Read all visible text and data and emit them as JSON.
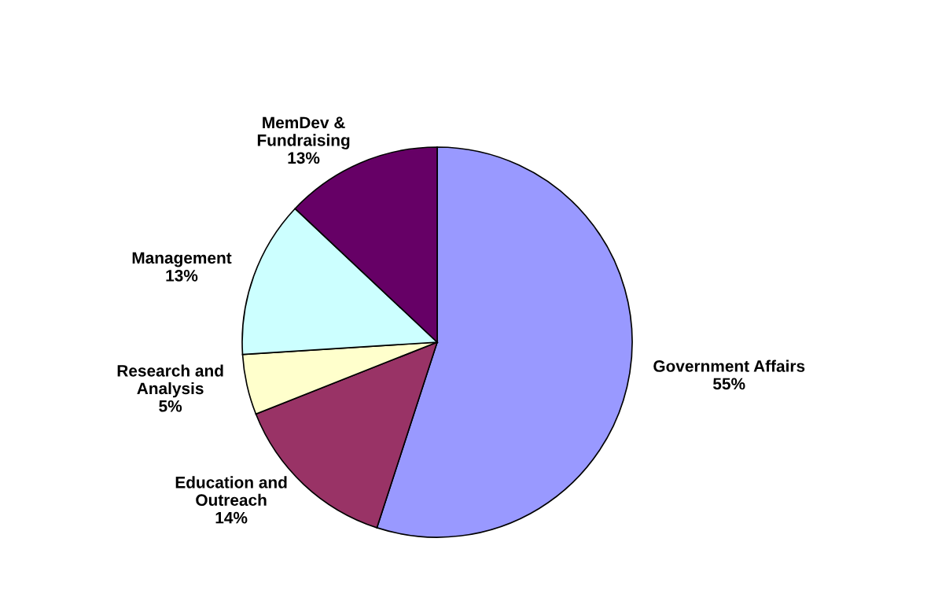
{
  "chart_data": {
    "type": "pie",
    "categories": [
      "Government Affairs",
      "Education and\nOutreach",
      "Research and\nAnalysis",
      "Management",
      "MemDev &\nFundraising"
    ],
    "values": [
      55,
      14,
      5,
      13,
      13
    ],
    "colors": [
      "#9999ff",
      "#993366",
      "#ffffcc",
      "#ccffff",
      "#660066"
    ],
    "value_labels": [
      "55%",
      "14%",
      "5%",
      "13%",
      "13%"
    ]
  }
}
